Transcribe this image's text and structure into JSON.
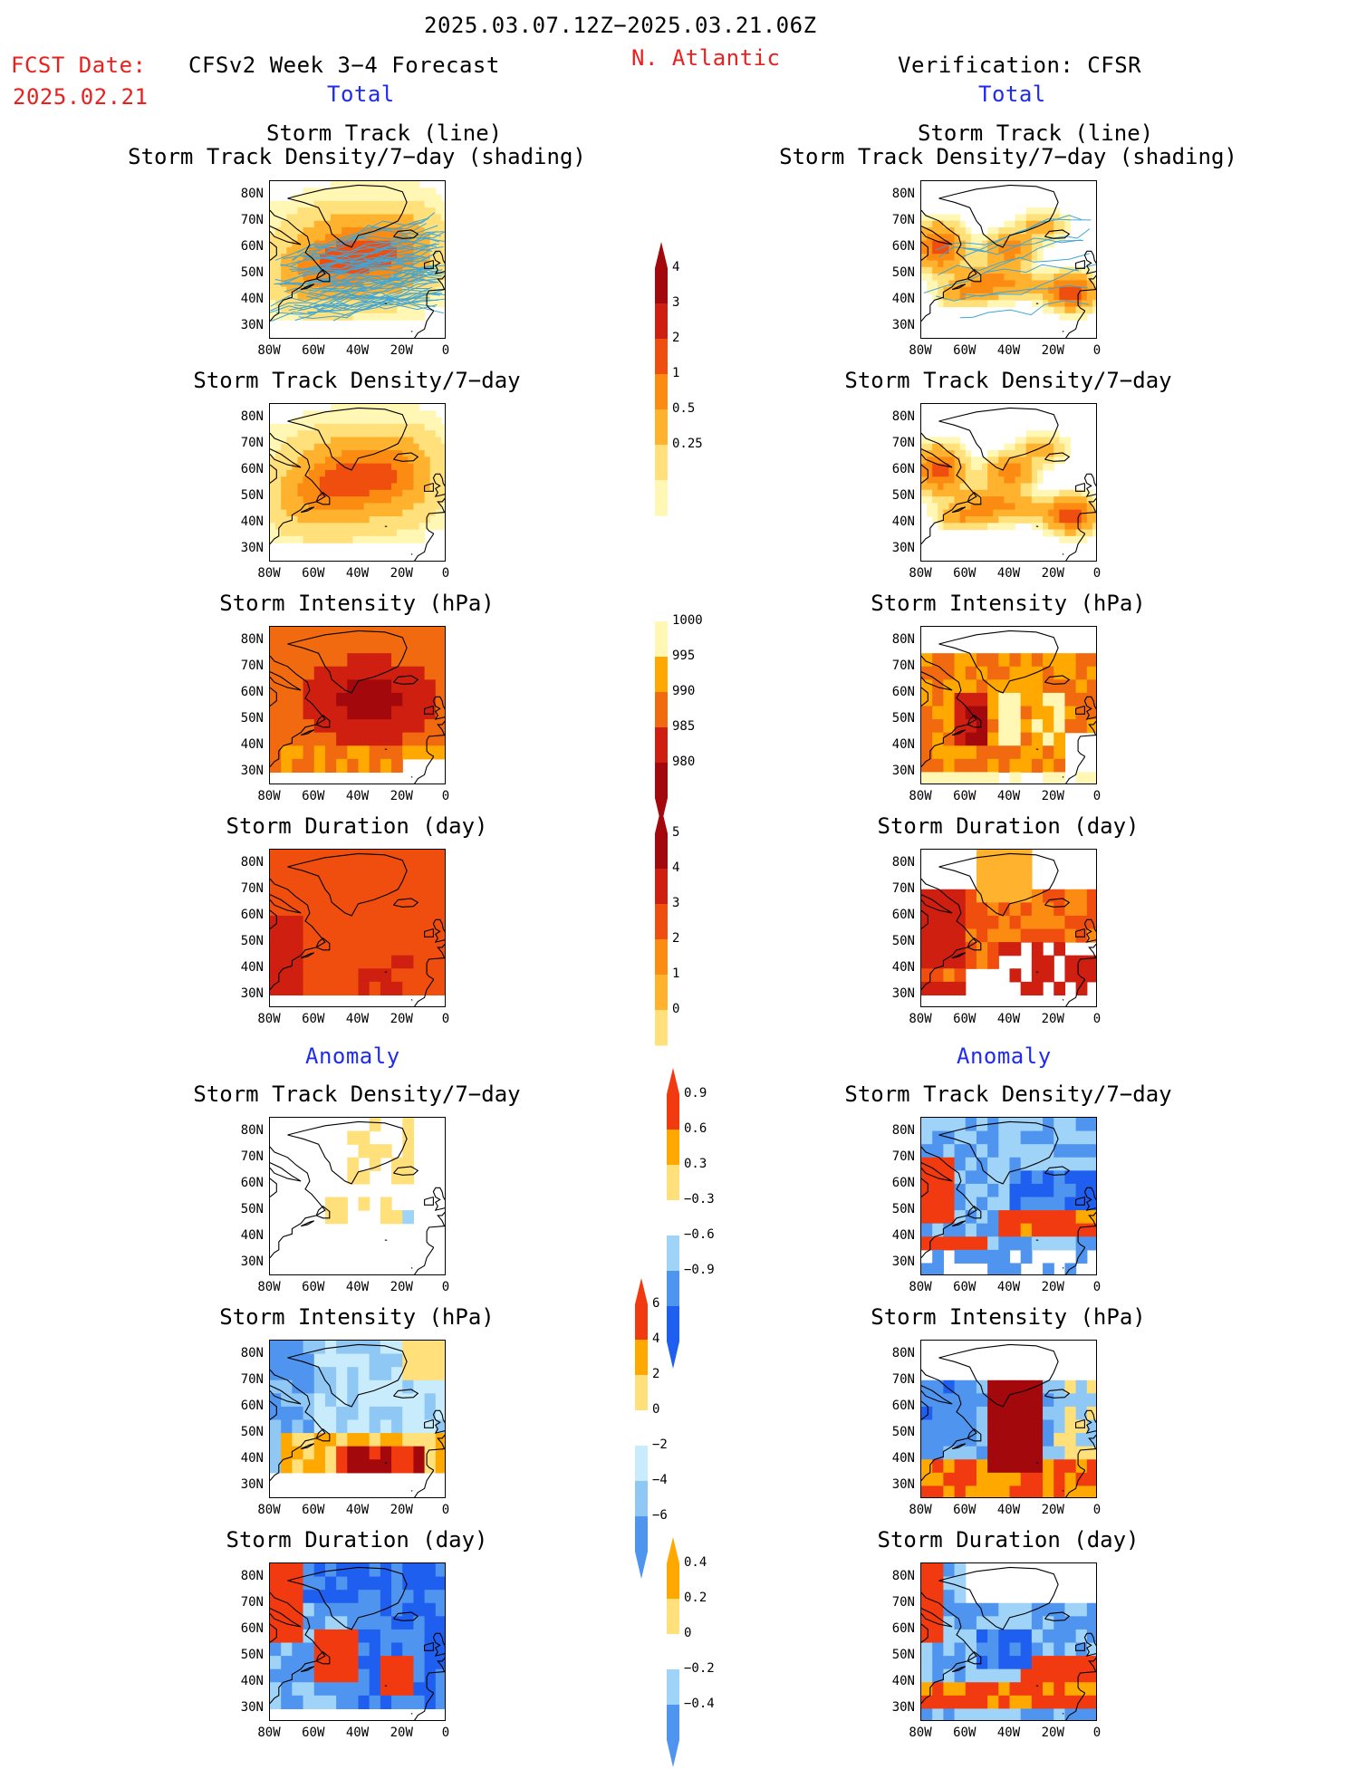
{
  "header": {
    "date_range": "2025.03.07.12Z−2025.03.21.06Z",
    "fcst_label": "FCST Date:",
    "fcst_date": "2025.02.21",
    "model_title": "CFSv2 Week 3−4 Forecast",
    "region": "N. Atlantic",
    "verification": "Verification: CFSR",
    "total_left": "Total",
    "total_right": "Total",
    "anomaly_left": "Anomaly",
    "anomaly_right": "Anomaly"
  },
  "panels": {
    "track_line": "Storm Track (line)",
    "track_shading": "Storm Track Density/7−day (shading)",
    "density": "Storm Track Density/7−day",
    "intensity": "Storm Intensity (hPa)",
    "duration": "Storm Duration (day)"
  },
  "axes": {
    "lat": [
      "80N",
      "70N",
      "60N",
      "50N",
      "40N",
      "30N"
    ],
    "lon": [
      "80W",
      "60W",
      "40W",
      "20W",
      "0"
    ]
  },
  "colorbars": {
    "density_total": [
      "4",
      "3",
      "2",
      "1",
      "0.5",
      "0.25"
    ],
    "intensity_total": [
      "1000",
      "995",
      "990",
      "985",
      "980"
    ],
    "duration_total": [
      "5",
      "4",
      "3",
      "2",
      "1",
      "0"
    ],
    "density_anom": [
      "0.9",
      "0.6",
      "0.3",
      "−0.3",
      "−0.6",
      "−0.9"
    ],
    "intensity_anom": [
      "6",
      "4",
      "2",
      "0",
      "−2",
      "−4",
      "−6"
    ],
    "duration_anom": [
      "0.4",
      "0.2",
      "0",
      "−0.2",
      "−0.4"
    ]
  },
  "colors": {
    "total_scale": [
      "#fff7b3",
      "#ffe07a",
      "#ffb22e",
      "#fc8b12",
      "#ef4e0f",
      "#cf1f10",
      "#a3090c"
    ],
    "intensity_scale": [
      "#fff7b3",
      "#ffa800",
      "#f16a0f",
      "#cf1f10",
      "#a3090c"
    ],
    "anom_scale": [
      "#1f5ff0",
      "#4f95ef",
      "#9fd4f8",
      "#ffffff",
      "#ffe07a",
      "#ffa800",
      "#f23a10"
    ],
    "anom_scale_ext": [
      "#1f5ff0",
      "#4f95ef",
      "#8fc7f5",
      "#c8ecfb",
      "#ffffff",
      "#ffe07a",
      "#ffa800",
      "#f23a10",
      "#a3090c"
    ],
    "track_line": "#3fa6d8"
  }
}
